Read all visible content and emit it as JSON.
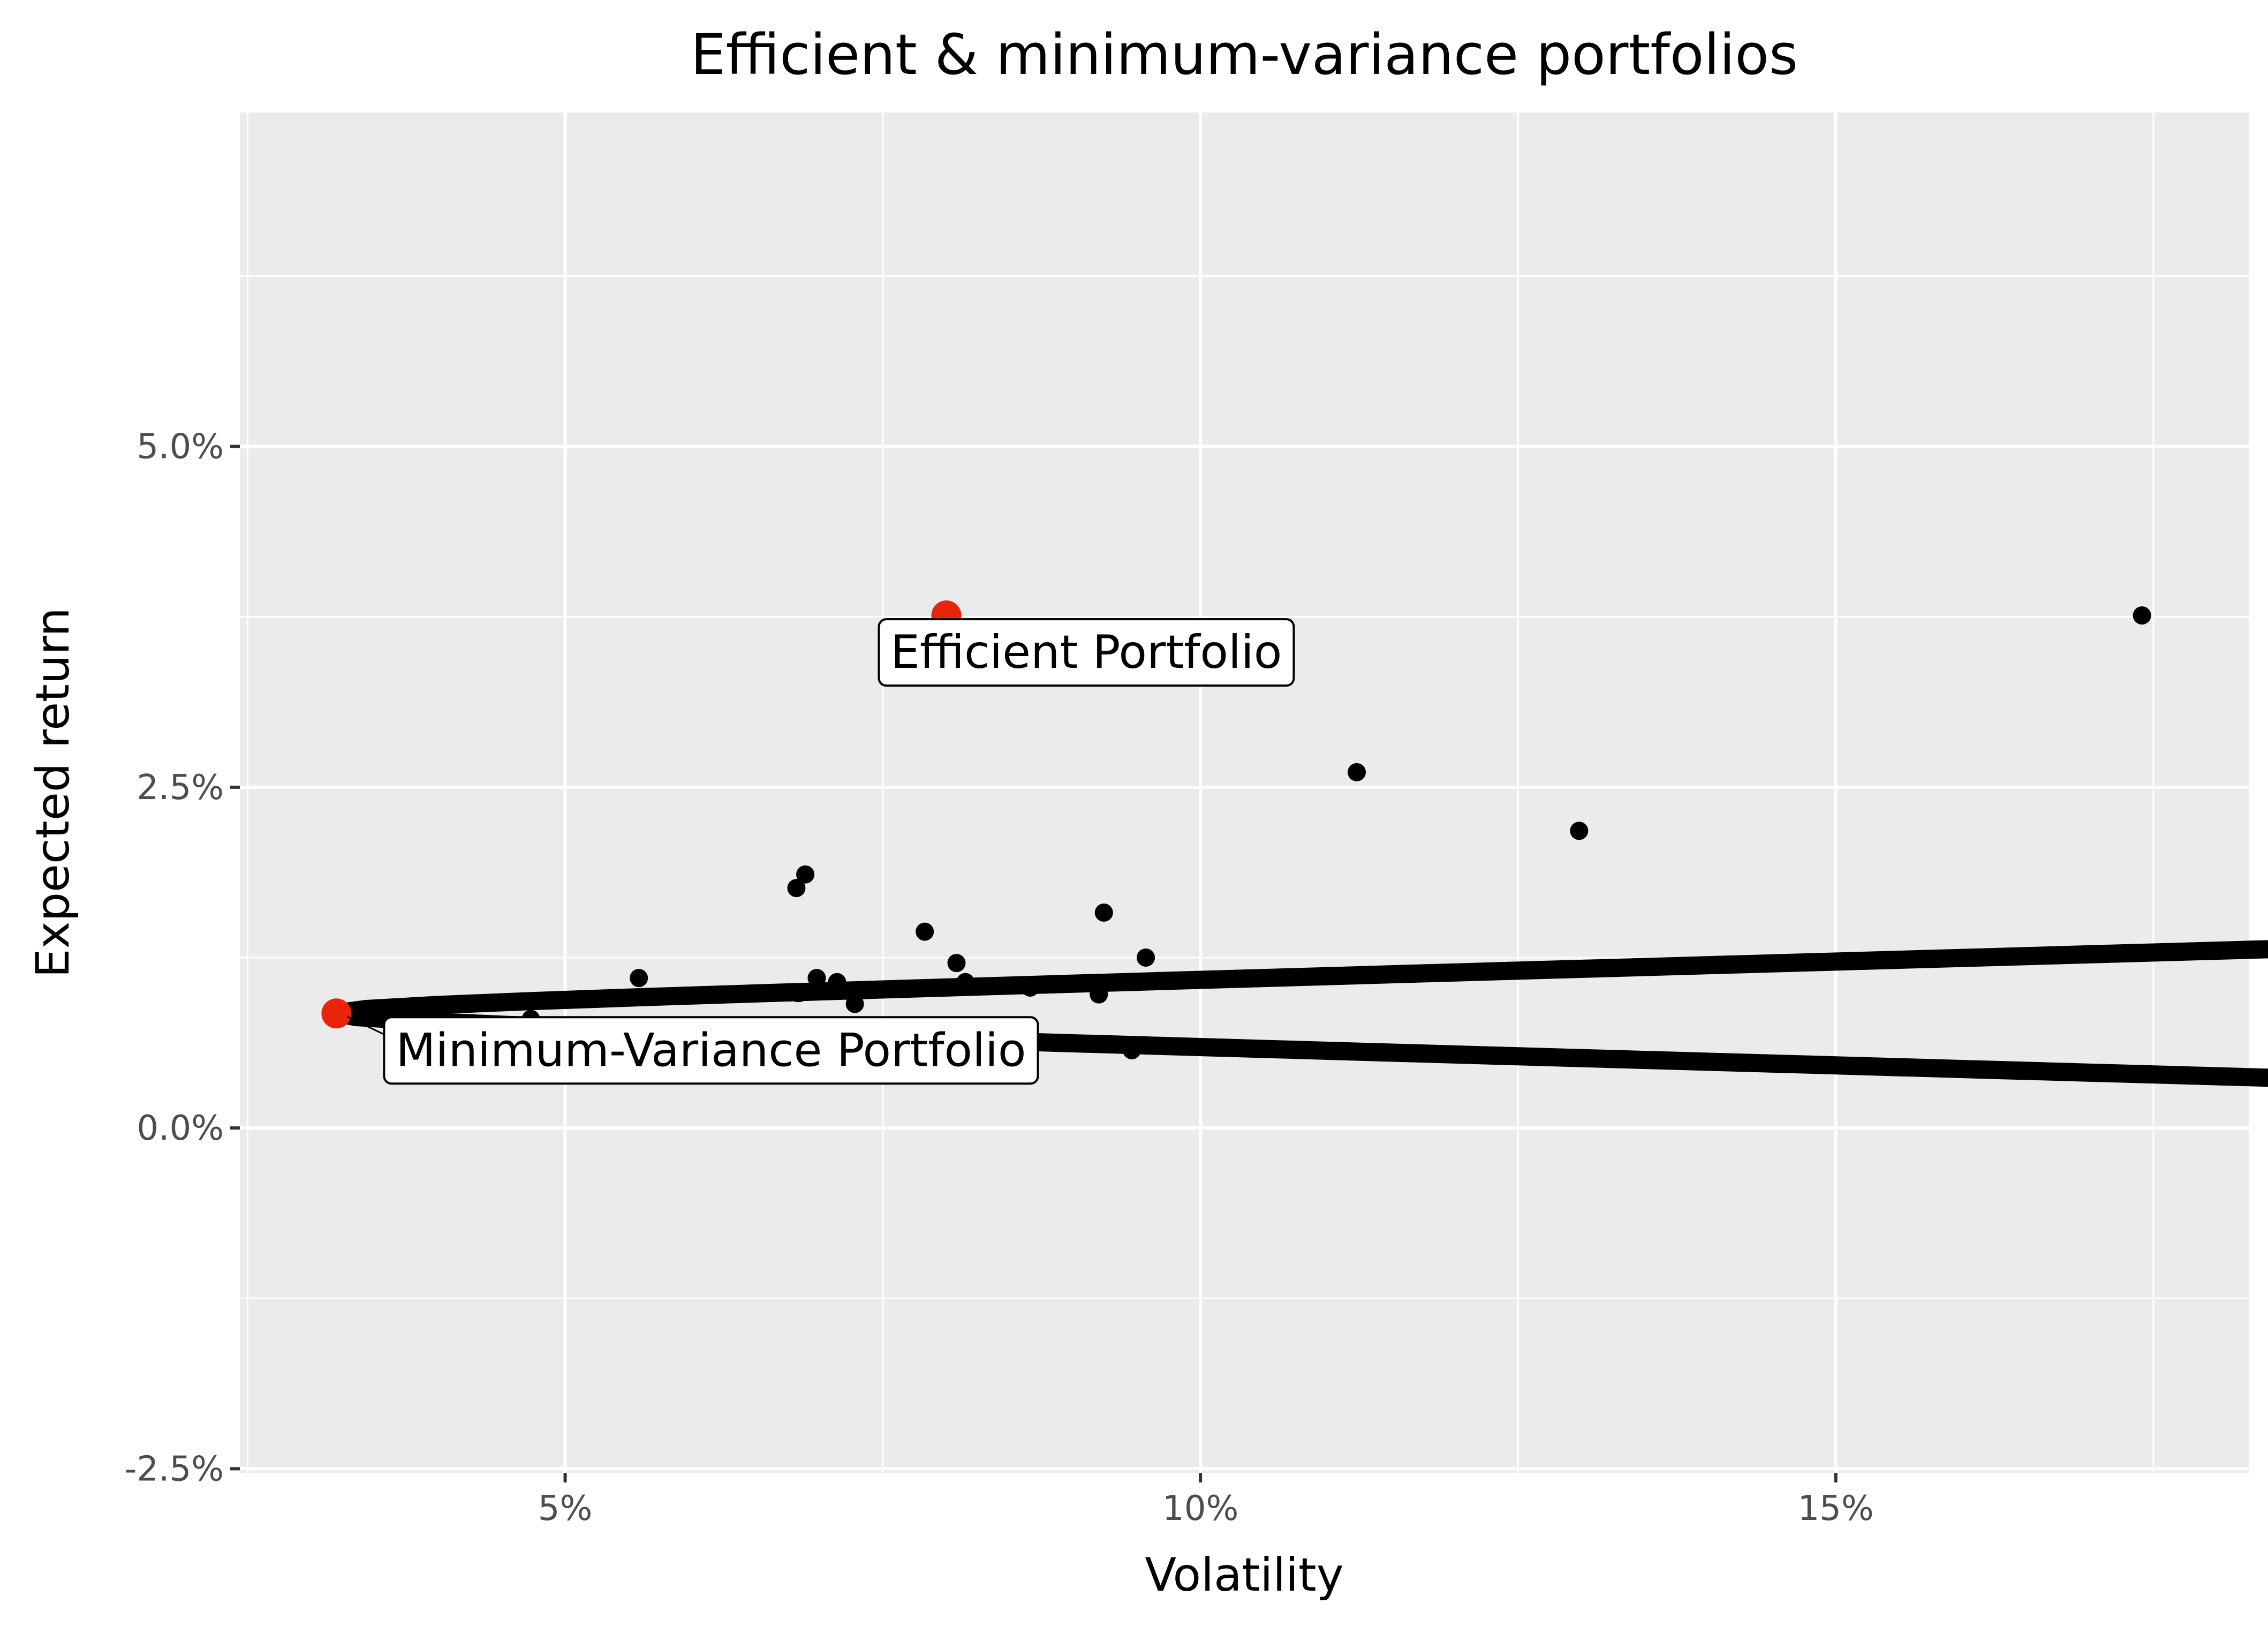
{
  "chart_data": {
    "type": "scatter",
    "title": "Efficient & minimum-variance portfolios",
    "xlabel": "Volatility",
    "ylabel": "Expected return",
    "xlim": [
      0.0244,
      0.1825
    ],
    "ylim": [
      -0.0253,
      0.0745
    ],
    "x_ticks": [
      {
        "value": 0.05,
        "label": "5%"
      },
      {
        "value": 0.1,
        "label": "10%"
      },
      {
        "value": 0.15,
        "label": "15%"
      }
    ],
    "y_ticks": [
      {
        "value": -0.025,
        "label": "-2.5%"
      },
      {
        "value": 0.0,
        "label": "0.0%"
      },
      {
        "value": 0.025,
        "label": "2.5%"
      },
      {
        "value": 0.05,
        "label": "5.0%"
      }
    ],
    "grid": true,
    "legend": "none",
    "colors": {
      "panel_background": "#ebebeb",
      "grid": "#ffffff",
      "points": "#000000",
      "highlight": "#e8250c"
    },
    "frontier": {
      "name": "",
      "min_variance_volatility": 0.032,
      "min_variance_return": 0.0084,
      "curvature_A": 0.026,
      "return_range": [
        -0.0207,
        0.0667
      ]
    },
    "assets": {
      "x": [
        0.0473,
        0.0558,
        0.0682,
        0.0683,
        0.0689,
        0.0684,
        0.0698,
        0.0714,
        0.0728,
        0.0783,
        0.0808,
        0.0815,
        0.0866,
        0.092,
        0.0921,
        0.0924,
        0.0946,
        0.0957,
        0.1123,
        0.1298,
        0.1741
      ],
      "y": [
        0.008,
        0.011,
        0.0176,
        0.0099,
        0.0186,
        0.0099,
        0.011,
        0.0107,
        0.0091,
        0.0144,
        0.0121,
        0.0107,
        0.0103,
        0.0098,
        0.0104,
        0.0158,
        0.0057,
        0.0125,
        0.0261,
        0.0218,
        0.0376
      ]
    },
    "highlighted": [
      {
        "name": "Efficient Portfolio",
        "x": 0.08,
        "y": 0.0376
      },
      {
        "name": "Minimum-Variance Portfolio",
        "x": 0.032,
        "y": 0.0084
      }
    ]
  }
}
